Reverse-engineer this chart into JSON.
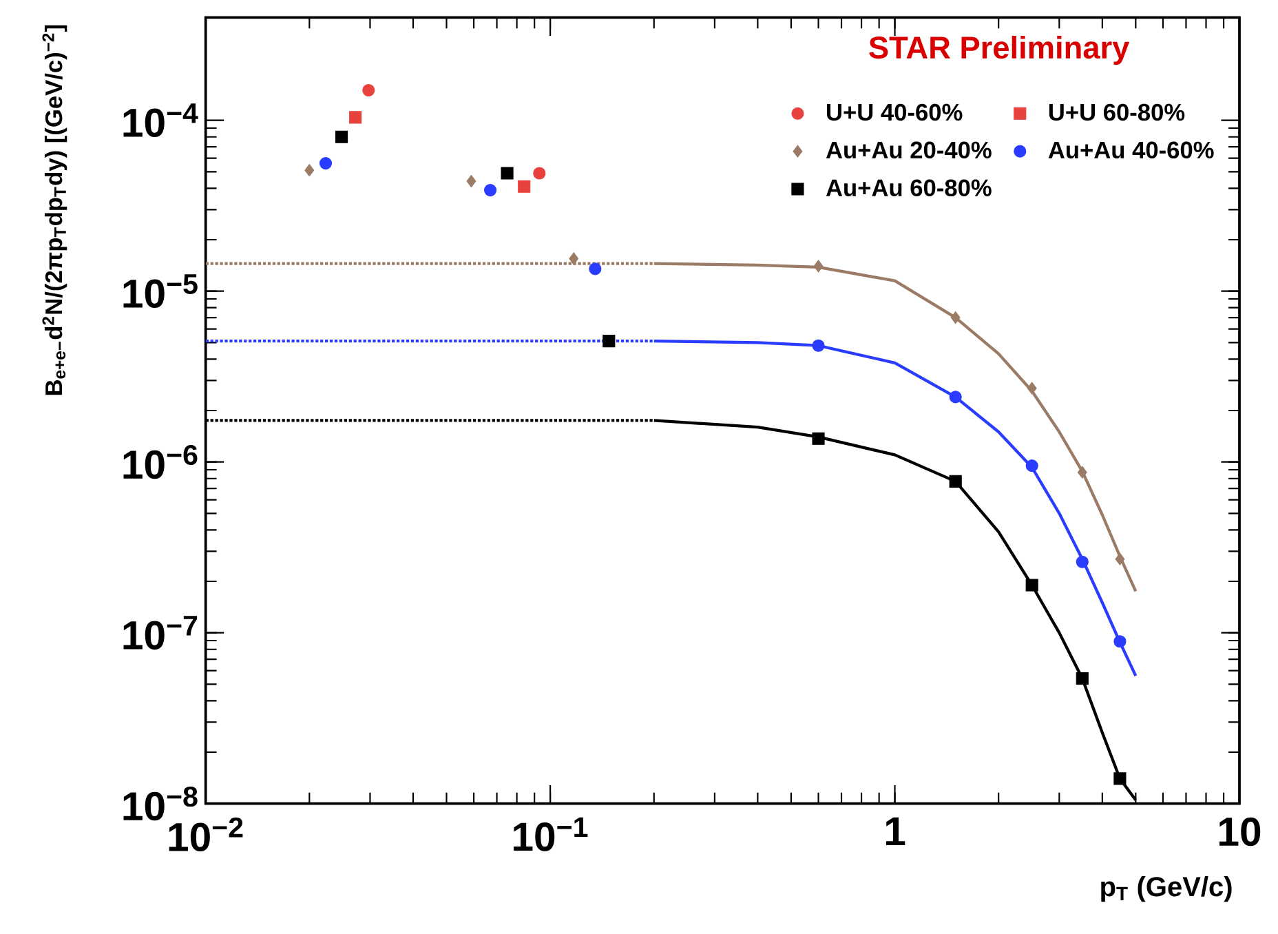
{
  "chart_data": {
    "type": "scatter",
    "xlabel": "p$_{T}$ (GeV/c)",
    "ylabel": "B$_{e+e−}$d$^{2}$N/(2πp$_{T}$dp$_{T}$dy) [(GeV/c)$^{−2}$]",
    "annotations": [
      "STAR Preliminary"
    ],
    "log": "xy",
    "xlim": [
      0.01,
      10
    ],
    "ylim": [
      1e-08,
      0.0004
    ],
    "xticks": [
      {
        "value": 0.01,
        "label": "10$^{−2}$"
      },
      {
        "value": 0.1,
        "label": "10$^{−1}$"
      },
      1,
      10
    ],
    "yticks": [
      {
        "value": 1e-08,
        "label": "10$^{−8}$"
      },
      {
        "value": 1e-07,
        "label": "10$^{−7}$"
      },
      {
        "value": 1e-06,
        "label": "10$^{−6}$"
      },
      {
        "value": 1e-05,
        "label": "10$^{−5}$"
      },
      {
        "value": 0.0001,
        "label": "10$^{−4}$"
      }
    ],
    "legend": "top right",
    "series": [
      {
        "type": "line",
        "color": "#9b7b66",
        "line_style": "dotted",
        "x": [
          0.01,
          0.2
        ],
        "values": [
          1.45e-05,
          1.45e-05
        ]
      },
      {
        "type": "line",
        "color": "#2a3cff",
        "line_style": "dotted",
        "x": [
          0.01,
          0.2
        ],
        "values": [
          5.1e-06,
          5.1e-06
        ]
      },
      {
        "type": "line",
        "color": "#000000",
        "line_style": "dotted",
        "x": [
          0.01,
          0.2
        ],
        "values": [
          1.75e-06,
          1.75e-06
        ]
      },
      {
        "type": "line",
        "color": "#9b7b66",
        "line_style": "solid",
        "x": [
          0.2,
          0.4,
          0.6,
          1.0,
          1.5,
          2.0,
          2.5,
          3.0,
          3.5,
          4.0,
          4.5,
          5.0
        ],
        "values": [
          1.45e-05,
          1.42e-05,
          1.38e-05,
          1.15e-05,
          7e-06,
          4.3e-06,
          2.6e-06,
          1.5e-06,
          8.8e-07,
          4.9e-07,
          2.8e-07,
          1.75e-07
        ]
      },
      {
        "type": "line",
        "color": "#2a3cff",
        "line_style": "solid",
        "x": [
          0.2,
          0.4,
          0.6,
          1.0,
          1.5,
          2.0,
          2.5,
          3.0,
          3.5,
          4.0,
          4.5,
          5.0
        ],
        "values": [
          5.1e-06,
          5e-06,
          4.8e-06,
          3.8e-06,
          2.4e-06,
          1.5e-06,
          9.3e-07,
          5e-07,
          2.7e-07,
          1.5e-07,
          8.8e-08,
          5.6e-08
        ]
      },
      {
        "type": "line",
        "color": "#000000",
        "line_style": "solid",
        "x": [
          0.2,
          0.4,
          0.6,
          1.0,
          1.5,
          2.0,
          2.5,
          3.0,
          3.5,
          4.0,
          4.5,
          5.0
        ],
        "values": [
          1.75e-06,
          1.6e-06,
          1.4e-06,
          1.1e-06,
          7.7e-07,
          3.9e-07,
          1.9e-07,
          1e-07,
          5.4e-08,
          2.6e-08,
          1.4e-08,
          1.05e-08
        ]
      },
      {
        "name": "U+U 40-60%",
        "color": "#e8423f",
        "marker": "circle",
        "x": [
          0.0297,
          0.093
        ],
        "values": [
          0.00015,
          4.9e-05
        ]
      },
      {
        "name": "U+U 60-80%",
        "color": "#e8423f",
        "marker": "square",
        "x": [
          0.0272,
          0.084
        ],
        "values": [
          0.000104,
          4.1e-05
        ]
      },
      {
        "name": "Au+Au 20-40%",
        "color": "#9b7b66",
        "marker": "diamond",
        "x": [
          0.02,
          0.059,
          0.117,
          0.6,
          1.5,
          2.5,
          3.5,
          4.5
        ],
        "values": [
          5.1e-05,
          4.4e-05,
          1.55e-05,
          1.4e-05,
          7e-06,
          2.7e-06,
          8.7e-07,
          2.7e-07
        ]
      },
      {
        "name": "Au+Au 40-60%",
        "color": "#2a3cff",
        "marker": "circle",
        "x": [
          0.0223,
          0.067,
          0.135,
          0.6,
          1.5,
          2.5,
          3.5,
          4.5
        ],
        "values": [
          5.6e-05,
          3.9e-05,
          1.35e-05,
          4.8e-06,
          2.4e-06,
          9.5e-07,
          2.6e-07,
          8.9e-08
        ]
      },
      {
        "name": "Au+Au 60-80%",
        "color": "#000000",
        "marker": "square",
        "x": [
          0.0248,
          0.075,
          0.148,
          0.6,
          1.5,
          2.5,
          3.5,
          4.5
        ],
        "values": [
          8e-05,
          4.9e-05,
          5.1e-06,
          1.37e-06,
          7.7e-07,
          1.9e-07,
          5.4e-08,
          1.4e-08
        ]
      }
    ]
  }
}
